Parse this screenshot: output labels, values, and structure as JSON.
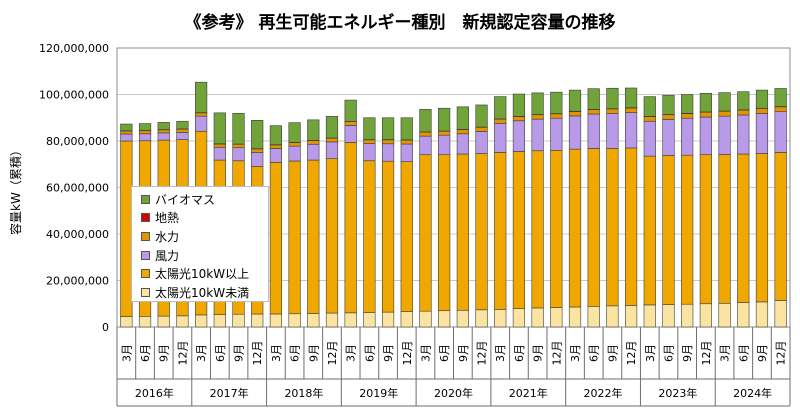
{
  "chart_data": {
    "type": "bar",
    "stacked": true,
    "title": "《参考》 再生可能エネルギー種別　新規認定容量の推移",
    "ylabel": "容量kW（累積）",
    "ylim": [
      0,
      120000000
    ],
    "yticks": [
      "0",
      "20,000,000",
      "40,000,000",
      "60,000,000",
      "80,000,000",
      "100,000,000",
      "120,000,000"
    ],
    "grid": true,
    "legend_position": "left-middle",
    "years": [
      {
        "label": "2016年",
        "months": [
          "3月",
          "6月",
          "9月",
          "12月"
        ]
      },
      {
        "label": "2017年",
        "months": [
          "3月",
          "6月",
          "9月",
          "12月"
        ]
      },
      {
        "label": "2018年",
        "months": [
          "3月",
          "6月",
          "9月",
          "12月"
        ]
      },
      {
        "label": "2019年",
        "months": [
          "3月",
          "6月",
          "9月",
          "12月"
        ]
      },
      {
        "label": "2020年",
        "months": [
          "3月",
          "6月",
          "9月",
          "12月"
        ]
      },
      {
        "label": "2021年",
        "months": [
          "3月",
          "6月",
          "9月",
          "12月"
        ]
      },
      {
        "label": "2022年",
        "months": [
          "3月",
          "6月",
          "9月",
          "12月"
        ]
      },
      {
        "label": "2023年",
        "months": [
          "3月",
          "6月",
          "9月",
          "12月"
        ]
      },
      {
        "label": "2024年",
        "months": [
          "3月",
          "6月",
          "9月",
          "12月"
        ]
      }
    ],
    "series": [
      {
        "name": "太陽光10kW未満",
        "color": "#fbe3a2",
        "values": [
          4500000,
          4600000,
          4700000,
          4800000,
          5200000,
          5300000,
          5500000,
          5600000,
          5600000,
          5700000,
          5800000,
          6000000,
          6100000,
          6300000,
          6400000,
          6600000,
          6800000,
          7000000,
          7200000,
          7400000,
          7600000,
          7900000,
          8200000,
          8400000,
          8600000,
          8900000,
          9100000,
          9300000,
          9500000,
          9700000,
          9800000,
          10000000,
          10200000,
          10500000,
          10800000,
          11400000
        ]
      },
      {
        "name": "太陽光10kW以上",
        "color": "#f0a800",
        "values": [
          75500000,
          75500000,
          75700000,
          75800000,
          79000000,
          66500000,
          66000000,
          63500000,
          65200000,
          65700000,
          66000000,
          66400000,
          73300000,
          65200000,
          64900000,
          64500000,
          67300000,
          67100000,
          67200000,
          67200000,
          67500000,
          67600000,
          67600000,
          67600000,
          67900000,
          67900000,
          67700000,
          67700000,
          64000000,
          64100000,
          64100000,
          64100000,
          64000000,
          63900000,
          63800000,
          63700000
        ]
      },
      {
        "name": "風力",
        "color": "#b89ae8",
        "values": [
          3000000,
          3000000,
          3100000,
          3100000,
          6500000,
          5500000,
          5600000,
          6000000,
          6000000,
          6400000,
          6800000,
          7200000,
          7300000,
          7400000,
          7500000,
          7600000,
          8000000,
          8400000,
          8700000,
          9500000,
          12500000,
          13200000,
          13600000,
          13800000,
          14300000,
          14800000,
          15000000,
          15200000,
          15000000,
          15500000,
          15900000,
          16200000,
          16500000,
          16800000,
          17200000,
          17500000
        ]
      },
      {
        "name": "水力",
        "color": "#e39400",
        "values": [
          1300000,
          1300000,
          1300000,
          1400000,
          1400000,
          1400000,
          1500000,
          1500000,
          1500000,
          1500000,
          1600000,
          1600000,
          1600000,
          1600000,
          1700000,
          1700000,
          1700000,
          1700000,
          1800000,
          1800000,
          1800000,
          1800000,
          1900000,
          1900000,
          1900000,
          1900000,
          2000000,
          2000000,
          2000000,
          2000000,
          2000000,
          2100000,
          2100000,
          2100000,
          2100000,
          2100000
        ]
      },
      {
        "name": "地熱",
        "color": "#d80000",
        "values": [
          100000,
          100000,
          100000,
          100000,
          100000,
          100000,
          100000,
          100000,
          100000,
          100000,
          100000,
          100000,
          100000,
          100000,
          100000,
          100000,
          100000,
          100000,
          100000,
          100000,
          100000,
          100000,
          100000,
          100000,
          100000,
          100000,
          100000,
          100000,
          100000,
          100000,
          100000,
          100000,
          100000,
          100000,
          100000,
          100000
        ]
      },
      {
        "name": "バイオマス",
        "color": "#70a33a",
        "values": [
          2900000,
          3000000,
          3100000,
          3300000,
          13100000,
          13300000,
          13200000,
          12200000,
          8200000,
          8500000,
          8800000,
          9300000,
          9200000,
          9400000,
          9400000,
          9500000,
          9700000,
          9800000,
          9700000,
          9500000,
          9600000,
          9600000,
          9300000,
          9200000,
          9100000,
          8900000,
          8800000,
          8500000,
          8500000,
          8300000,
          8100000,
          8000000,
          7900000,
          7800000,
          7900000,
          7800000
        ]
      }
    ]
  }
}
